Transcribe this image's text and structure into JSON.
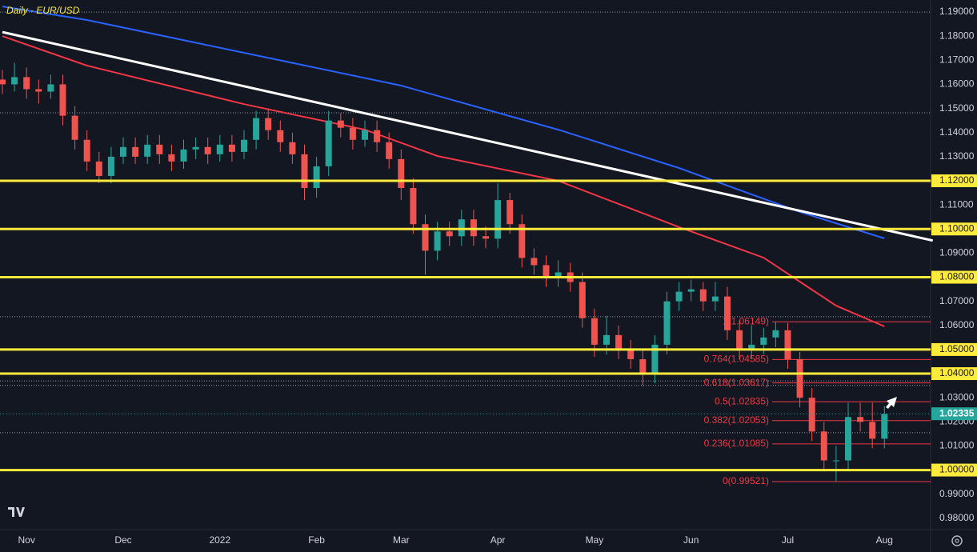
{
  "chart_data": {
    "type": "candlestick",
    "title": "Daily · EUR/USD",
    "categories": [
      null,
      null,
      "Nov",
      null,
      null,
      null,
      null,
      null,
      null,
      null,
      "Dec",
      null,
      null,
      null,
      null,
      null,
      null,
      null,
      "2022",
      null,
      null,
      null,
      null,
      null,
      null,
      null,
      "Feb",
      null,
      null,
      null,
      null,
      null,
      null,
      "Mar",
      null,
      null,
      null,
      null,
      null,
      null,
      null,
      "Apr",
      null,
      null,
      null,
      null,
      null,
      null,
      null,
      "May",
      null,
      null,
      null,
      null,
      null,
      null,
      null,
      "Jun",
      null,
      null,
      null,
      null,
      null,
      null,
      null,
      "Jul",
      null,
      null,
      null,
      null,
      null,
      null,
      null,
      "Aug"
    ],
    "open": [
      1.162,
      1.16,
      1.163,
      1.158,
      1.157,
      1.16,
      1.147,
      1.137,
      1.128,
      1.122,
      1.13,
      1.134,
      1.13,
      1.135,
      1.131,
      1.128,
      1.133,
      1.134,
      1.131,
      1.135,
      1.132,
      1.137,
      1.146,
      1.141,
      1.136,
      1.131,
      1.117,
      1.126,
      1.145,
      1.142,
      1.137,
      1.141,
      1.136,
      1.129,
      1.117,
      1.102,
      1.091,
      1.099,
      1.097,
      1.104,
      1.097,
      1.096,
      1.112,
      1.102,
      1.088,
      1.085,
      1.08,
      1.082,
      1.078,
      1.063,
      1.052,
      1.056,
      1.05,
      1.046,
      1.04,
      1.052,
      1.07,
      1.074,
      1.075,
      1.07,
      1.072,
      1.058,
      1.05,
      1.052,
      1.055,
      1.058,
      1.046,
      1.03,
      1.016,
      1.004,
      1.004,
      1.022,
      1.02,
      1.013
    ],
    "high": [
      1.166,
      1.169,
      1.167,
      1.162,
      1.164,
      1.164,
      1.151,
      1.141,
      1.132,
      1.134,
      1.138,
      1.138,
      1.139,
      1.139,
      1.135,
      1.137,
      1.138,
      1.138,
      1.139,
      1.139,
      1.141,
      1.149,
      1.15,
      1.145,
      1.14,
      1.135,
      1.13,
      1.149,
      1.148,
      1.146,
      1.145,
      1.145,
      1.14,
      1.133,
      1.121,
      1.106,
      1.103,
      1.103,
      1.108,
      1.108,
      1.101,
      1.119,
      1.115,
      1.106,
      1.092,
      1.089,
      1.087,
      1.086,
      1.082,
      1.067,
      1.064,
      1.06,
      1.054,
      1.05,
      1.056,
      1.074,
      1.078,
      1.079,
      1.078,
      1.078,
      1.076,
      1.062,
      1.06,
      1.059,
      1.0615,
      1.061,
      1.049,
      1.034,
      1.02,
      1.01,
      1.028,
      1.028,
      1.028,
      1.0265
    ],
    "low": [
      1.156,
      1.157,
      1.154,
      1.152,
      1.154,
      1.143,
      1.133,
      1.124,
      1.119,
      1.119,
      1.127,
      1.127,
      1.127,
      1.127,
      1.124,
      1.125,
      1.129,
      1.127,
      1.128,
      1.128,
      1.129,
      1.133,
      1.137,
      1.132,
      1.127,
      1.112,
      1.113,
      1.122,
      1.138,
      1.133,
      1.134,
      1.132,
      1.125,
      1.112,
      1.098,
      1.081,
      1.087,
      1.093,
      1.093,
      1.093,
      1.092,
      1.092,
      1.098,
      1.084,
      1.081,
      1.076,
      1.076,
      1.074,
      1.059,
      1.047,
      1.048,
      1.046,
      1.042,
      1.035,
      1.036,
      1.048,
      1.066,
      1.07,
      1.066,
      1.066,
      1.054,
      1.046,
      1.046,
      1.048,
      1.051,
      1.042,
      1.026,
      1.012,
      1.0,
      0.9952,
      1.0,
      1.016,
      1.009,
      1.009
    ],
    "close": [
      1.16,
      1.163,
      1.158,
      1.157,
      1.16,
      1.147,
      1.137,
      1.128,
      1.122,
      1.13,
      1.134,
      1.13,
      1.135,
      1.131,
      1.128,
      1.133,
      1.134,
      1.131,
      1.135,
      1.132,
      1.137,
      1.146,
      1.141,
      1.136,
      1.131,
      1.117,
      1.126,
      1.145,
      1.142,
      1.137,
      1.141,
      1.136,
      1.129,
      1.117,
      1.102,
      1.091,
      1.099,
      1.097,
      1.104,
      1.097,
      1.096,
      1.112,
      1.102,
      1.088,
      1.085,
      1.08,
      1.082,
      1.078,
      1.063,
      1.052,
      1.056,
      1.05,
      1.046,
      1.04,
      1.052,
      1.07,
      1.074,
      1.075,
      1.07,
      1.072,
      1.058,
      1.05,
      1.052,
      1.055,
      1.058,
      1.046,
      1.03,
      1.016,
      1.004,
      1.004,
      1.022,
      1.02,
      1.013,
      1.0233
    ],
    "up_color": "#26a69a",
    "down_color": "#ef5350",
    "lines": [
      {
        "color": "#2962ff",
        "x": [
          0,
          7,
          20,
          33,
          46,
          56,
          66,
          73
        ],
        "values": [
          1.1923,
          1.1867,
          1.1731,
          1.1595,
          1.1412,
          1.1253,
          1.1071,
          1.0961
        ]
      },
      {
        "color": "#f23645",
        "x": [
          0,
          7,
          20,
          30,
          36,
          46,
          56,
          63,
          69,
          73
        ],
        "values": [
          1.18,
          1.1678,
          1.1518,
          1.1412,
          1.1303,
          1.12,
          1.1008,
          1.0881,
          1.0682,
          1.0596
        ]
      },
      {
        "color": "#ffffff",
        "x": [
          0,
          77
        ],
        "values": [
          1.1817,
          1.0952
        ]
      }
    ],
    "levels": [
      1.12,
      1.1,
      1.08,
      1.05,
      1.04,
      1.0
    ],
    "level_color": "#ffeb3b",
    "dotted_levels": [
      1.19,
      1.1482,
      1.0636,
      1.037,
      1.0351,
      1.0155
    ],
    "fib": [
      {
        "value": 1.06149,
        "label": "1(1.06149)"
      },
      {
        "value": 1.04585,
        "label": "0.764(1.04585)"
      },
      {
        "value": 1.03617,
        "label": "0.618(1.03617)"
      },
      {
        "value": 1.02835,
        "label": "0.5(1.02835)"
      },
      {
        "value": 1.02053,
        "label": "0.382(1.02053)"
      },
      {
        "value": 1.01085,
        "label": "0.236(1.01085)"
      },
      {
        "value": 0.99521,
        "label": "0(0.99521)"
      }
    ],
    "fib_color": "#f23645",
    "last_price": 1.02335,
    "ylim": [
      0.9753,
      1.195
    ],
    "yticks": [
      {
        "value": 1.19,
        "label": "1.19000"
      },
      {
        "value": 1.18,
        "label": "1.18000"
      },
      {
        "value": 1.17,
        "label": "1.17000"
      },
      {
        "value": 1.16,
        "label": "1.16000"
      },
      {
        "value": 1.15,
        "label": "1.15000"
      },
      {
        "value": 1.14,
        "label": "1.14000"
      },
      {
        "value": 1.13,
        "label": "1.13000"
      },
      {
        "value": 1.12,
        "label": "1.12000"
      },
      {
        "value": 1.11,
        "label": "1.11000"
      },
      {
        "value": 1.1,
        "label": "1.10000"
      },
      {
        "value": 1.09,
        "label": "1.09000"
      },
      {
        "value": 1.08,
        "label": "1.08000"
      },
      {
        "value": 1.07,
        "label": "1.07000"
      },
      {
        "value": 1.06,
        "label": "1.06000"
      },
      {
        "value": 1.05,
        "label": "1.05000"
      },
      {
        "value": 1.04,
        "label": "1.04000"
      },
      {
        "value": 1.03,
        "label": "1.03000"
      },
      {
        "value": 1.02,
        "label": "1.02000"
      },
      {
        "value": 1.01,
        "label": "1.01000"
      },
      {
        "value": 1.0,
        "label": "1.00000"
      },
      {
        "value": 0.99,
        "label": "0.99000"
      },
      {
        "value": 0.98,
        "label": "0.98000"
      }
    ],
    "grid": false
  }
}
